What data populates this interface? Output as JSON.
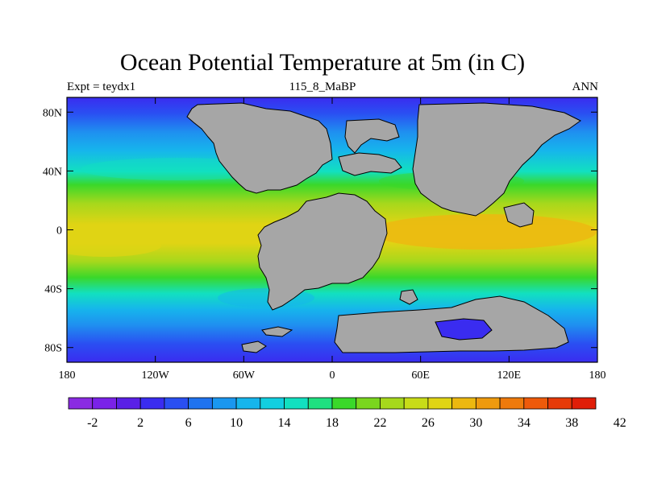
{
  "title": "Ocean Potential Temperature at 5m (in C)",
  "left_label": "Expt = teydx1",
  "center_label": "115_8_MaBP",
  "right_label": "ANN",
  "lon_ticks": [
    "180",
    "120W",
    "60W",
    "0",
    "60E",
    "120E",
    "180"
  ],
  "lat_ticks": [
    "80N",
    "40N",
    "0",
    "40S",
    "80S"
  ],
  "colorbar": {
    "labels": [
      "-2",
      "2",
      "6",
      "10",
      "14",
      "18",
      "22",
      "26",
      "30",
      "34",
      "38",
      "42"
    ],
    "colors": [
      "#8a2be2",
      "#7a22e8",
      "#5a20e6",
      "#3a2cf0",
      "#2a4ff2",
      "#1f73f0",
      "#1a97f0",
      "#16b5ec",
      "#12cfe0",
      "#12e0c0",
      "#1fe080",
      "#3ad82a",
      "#7ad61e",
      "#a6d81c",
      "#c8dc18",
      "#e0d414",
      "#ecb810",
      "#ee9a0e",
      "#ee7a0c",
      "#ee5a0a",
      "#e63a08",
      "#e01e08"
    ]
  },
  "land_color": "#a6a6a6",
  "ocean_colors": {
    "polar": "#3a3ce8",
    "subpolar": "#1f8ff0",
    "mid": "#18c8e0",
    "temperate": "#3ed830",
    "warm": "#c8dc18",
    "tropical": "#e0c010"
  }
}
